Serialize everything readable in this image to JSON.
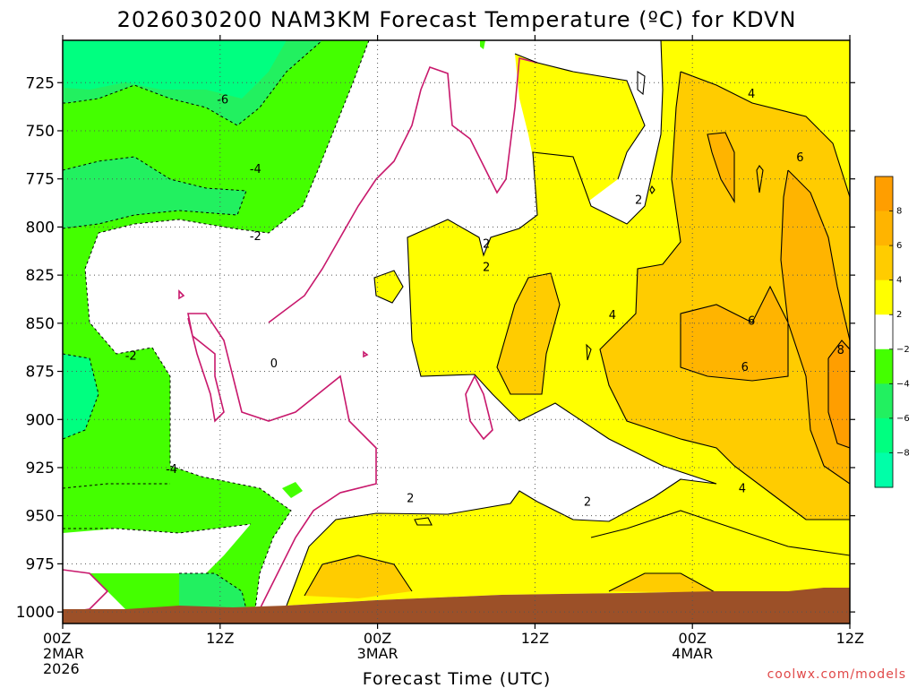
{
  "chart_data": {
    "type": "heatmap",
    "title": "2026030200 NAM3KM Forecast Temperature (ºC) for KDVN",
    "xlabel": "Forecast Time (UTC)",
    "credit": "coolwx.com/models",
    "x_ticks": [
      {
        "value": 0,
        "lines": [
          "00Z",
          "2MAR",
          "2026"
        ]
      },
      {
        "value": 12,
        "lines": [
          "12Z"
        ]
      },
      {
        "value": 24,
        "lines": [
          "00Z",
          "3MAR"
        ]
      },
      {
        "value": 36,
        "lines": [
          "12Z"
        ]
      },
      {
        "value": 48,
        "lines": [
          "00Z",
          "4MAR"
        ]
      },
      {
        "value": 60,
        "lines": [
          "12Z"
        ]
      }
    ],
    "x_range_hours": [
      0,
      60
    ],
    "y_ticks": [
      725,
      750,
      775,
      800,
      825,
      850,
      875,
      900,
      925,
      950,
      975,
      1000
    ],
    "y_range_hpa": [
      703,
      1006
    ],
    "y_axis_inverted": true,
    "grid": true,
    "colorbar": {
      "position": "right",
      "labels": [
        "8",
        "6",
        "4",
        "2",
        "−2",
        "−4",
        "−6",
        "−8"
      ],
      "bins": [
        {
          "range": [
            8,
            10
          ],
          "color": "#ff9e00"
        },
        {
          "range": [
            6,
            8
          ],
          "color": "#ffb400"
        },
        {
          "range": [
            4,
            6
          ],
          "color": "#ffcc00"
        },
        {
          "range": [
            2,
            4
          ],
          "color": "#ffff00"
        },
        {
          "range": [
            -2,
            2
          ],
          "color": "#ffffff"
        },
        {
          "range": [
            -4,
            -2
          ],
          "color": "#44ff00"
        },
        {
          "range": [
            -6,
            -4
          ],
          "color": "#22f060"
        },
        {
          "range": [
            -8,
            -6
          ],
          "color": "#00ff80"
        },
        {
          "range": [
            -10,
            -8
          ],
          "color": "#00ffa8"
        }
      ]
    },
    "contour_labels": [
      {
        "text": "-6",
        "hour": 12.2,
        "hpa": 734
      },
      {
        "text": "-4",
        "hour": 14.7,
        "hpa": 770
      },
      {
        "text": "-2",
        "hour": 14.7,
        "hpa": 805
      },
      {
        "text": "-2",
        "hour": 5.2,
        "hpa": 867
      },
      {
        "text": "-4",
        "hour": 8.3,
        "hpa": 926
      },
      {
        "text": "0",
        "hour": 16.1,
        "hpa": 871
      },
      {
        "text": "2",
        "hour": 32.3,
        "hpa": 809
      },
      {
        "text": "2",
        "hour": 32.3,
        "hpa": 821
      },
      {
        "text": "2",
        "hour": 43.9,
        "hpa": 786
      },
      {
        "text": "2",
        "hour": 26.5,
        "hpa": 941
      },
      {
        "text": "2",
        "hour": 40.0,
        "hpa": 943
      },
      {
        "text": "4",
        "hour": 41.9,
        "hpa": 846
      },
      {
        "text": "4",
        "hour": 52.5,
        "hpa": 731
      },
      {
        "text": "4",
        "hour": 51.8,
        "hpa": 936
      },
      {
        "text": "6",
        "hour": 56.2,
        "hpa": 764
      },
      {
        "text": "6",
        "hour": 52.5,
        "hpa": 849
      },
      {
        "text": "6",
        "hour": 52.0,
        "hpa": 873
      },
      {
        "text": "8",
        "hour": 59.3,
        "hpa": 864
      }
    ],
    "surface": "ground surface shaded brown near 1000 hPa"
  }
}
